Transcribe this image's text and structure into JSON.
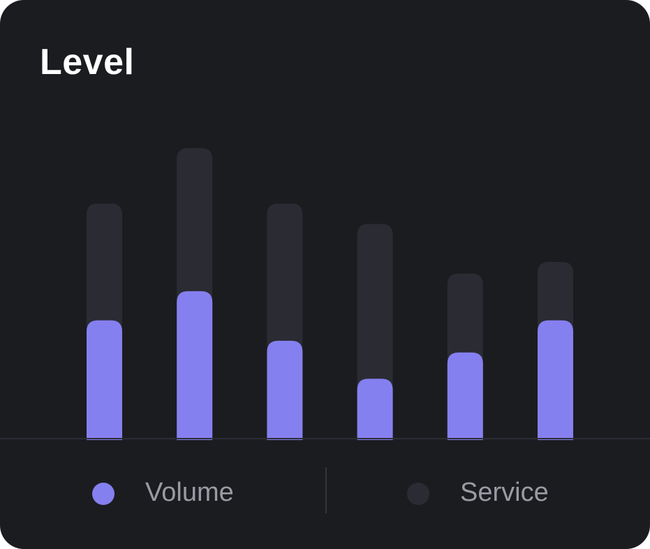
{
  "card": {
    "title": "Level",
    "background": "#1b1c20"
  },
  "legend": {
    "items": [
      {
        "label": "Volume",
        "color": "#8580ef"
      },
      {
        "label": "Service",
        "color": "#2b2b33"
      }
    ]
  },
  "chart_data": {
    "type": "bar",
    "title": "Level",
    "xlabel": "",
    "ylabel": "",
    "ylim": [
      0,
      100
    ],
    "grid": false,
    "categories": [
      "",
      "",
      "",
      "",
      "",
      ""
    ],
    "series": [
      {
        "name": "Service",
        "color": "#2b2b33",
        "values": [
          81,
          100,
          81,
          74,
          57,
          61
        ]
      },
      {
        "name": "Volume",
        "color": "#8580ef",
        "values": [
          41,
          51,
          34,
          21,
          30,
          41
        ]
      }
    ],
    "legend_position": "bottom"
  }
}
